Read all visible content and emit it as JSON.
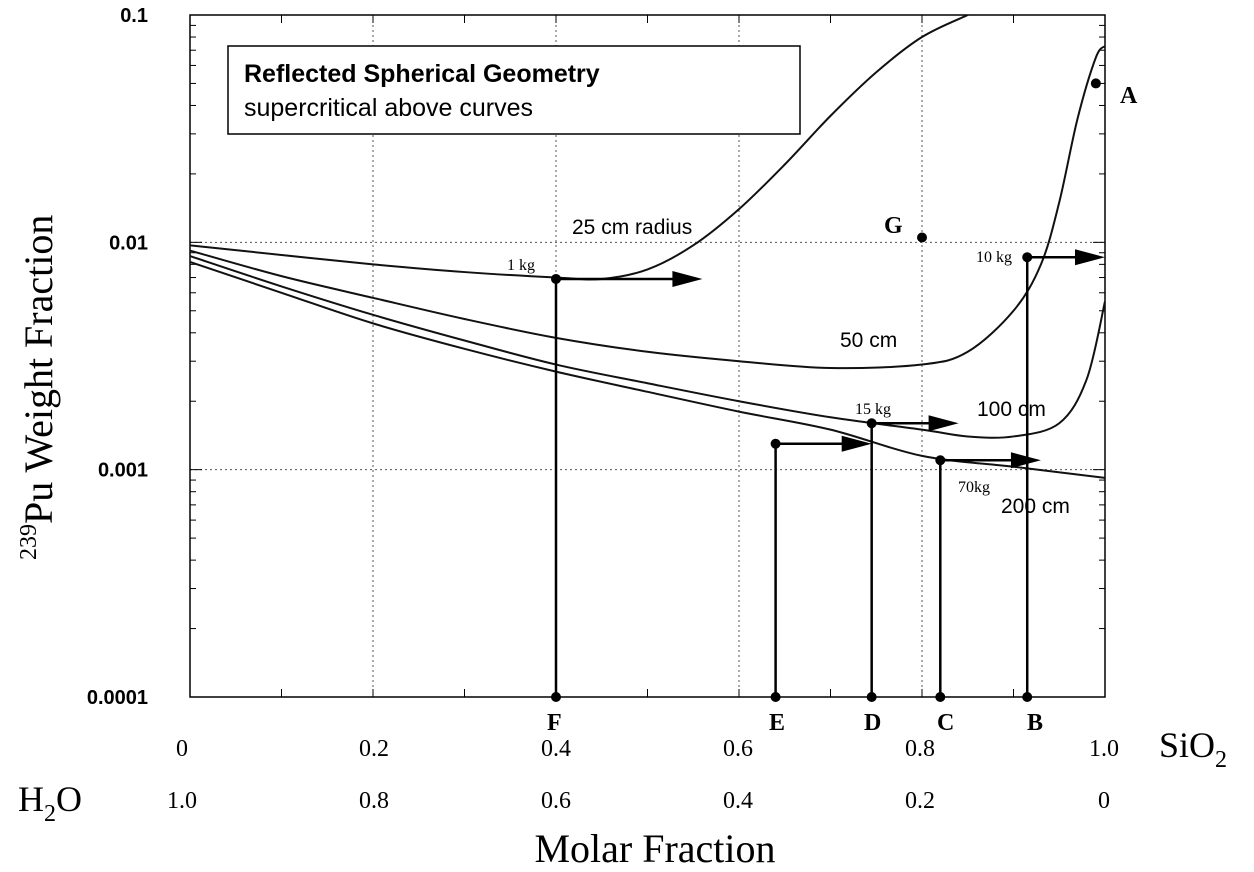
{
  "chart_data": {
    "type": "line",
    "title": "Reflected Spherical Geometry",
    "subtitle": "supercritical above curves",
    "ylabel_sup": "239",
    "ylabel_rest": "Pu Weight Fraction",
    "xlabel": "Molar Fraction",
    "x_axis_top": {
      "label_main": "SiO",
      "label_sub": "2",
      "ticks": [
        "0",
        "0.2",
        "0.4",
        "0.6",
        "0.8",
        "1.0"
      ]
    },
    "x_axis_bottom": {
      "label_main": "H",
      "label_sub": "2",
      "label_tail": "O",
      "ticks": [
        "1.0",
        "0.8",
        "0.6",
        "0.4",
        "0.2",
        "0"
      ]
    },
    "y_ticks": [
      "0.0001",
      "0.001",
      "0.01",
      "0.1"
    ],
    "y_scale": "log",
    "xlim": [
      0,
      1.0
    ],
    "ylim": [
      0.0001,
      0.1
    ],
    "grid": true,
    "series": [
      {
        "name": "25 cm radius",
        "x": [
          0,
          0.1,
          0.2,
          0.3,
          0.4,
          0.45,
          0.5,
          0.55,
          0.6,
          0.65,
          0.7,
          0.75,
          0.8,
          0.85
        ],
        "y": [
          0.0097,
          0.0088,
          0.008,
          0.0074,
          0.007,
          0.0069,
          0.0076,
          0.0097,
          0.014,
          0.022,
          0.036,
          0.056,
          0.08,
          0.1
        ]
      },
      {
        "name": "50 cm",
        "x": [
          0,
          0.1,
          0.2,
          0.3,
          0.4,
          0.5,
          0.6,
          0.7,
          0.8,
          0.85,
          0.9,
          0.93,
          0.95,
          0.97,
          0.99,
          1.0
        ],
        "y": [
          0.0092,
          0.0071,
          0.0057,
          0.0046,
          0.0038,
          0.0033,
          0.003,
          0.0028,
          0.0029,
          0.0033,
          0.005,
          0.008,
          0.015,
          0.035,
          0.065,
          0.073
        ]
      },
      {
        "name": "100 cm",
        "x": [
          0,
          0.1,
          0.2,
          0.3,
          0.4,
          0.5,
          0.6,
          0.7,
          0.8,
          0.85,
          0.9,
          0.95,
          0.98,
          1.0
        ],
        "y": [
          0.0087,
          0.0064,
          0.0048,
          0.0037,
          0.0029,
          0.0024,
          0.002,
          0.0017,
          0.0015,
          0.0014,
          0.0014,
          0.0016,
          0.0025,
          0.0055
        ]
      },
      {
        "name": "200 cm",
        "x": [
          0,
          0.1,
          0.2,
          0.3,
          0.4,
          0.5,
          0.6,
          0.7,
          0.8,
          0.9,
          1.0
        ],
        "y": [
          0.0082,
          0.006,
          0.0044,
          0.0034,
          0.0027,
          0.0022,
          0.0018,
          0.0015,
          0.00115,
          0.00103,
          0.00092
        ]
      }
    ],
    "annotations": [
      {
        "text": "1 kg",
        "x": 0.4,
        "y": 0.0069
      },
      {
        "text": "10 kg",
        "x": 0.915,
        "y": 0.0086
      },
      {
        "text": "15 kg",
        "x": 0.745,
        "y": 0.0016
      },
      {
        "text": "70kg",
        "x": 0.82,
        "y": 0.0011
      }
    ],
    "points": [
      {
        "label": "A",
        "x": 0.99,
        "y": 0.05
      },
      {
        "label": "B",
        "x": 0.915,
        "y": 0.0001
      },
      {
        "label": "C",
        "x": 0.82,
        "y": 0.0001
      },
      {
        "label": "D",
        "x": 0.745,
        "y": 0.0001
      },
      {
        "label": "E",
        "x": 0.64,
        "y": 0.0001
      },
      {
        "label": "F",
        "x": 0.4,
        "y": 0.0001
      },
      {
        "label": "G",
        "x": 0.8,
        "y": 0.0105
      }
    ],
    "markers": [
      {
        "name": "1 kg",
        "x": 0.4,
        "y": 0.0069
      },
      {
        "name": "10 kg",
        "x": 0.915,
        "y": 0.0086
      },
      {
        "name": "15 kg",
        "x": 0.745,
        "y": 0.0016
      },
      {
        "name": "70kg",
        "x": 0.82,
        "y": 0.0011
      },
      {
        "name": "E",
        "x": 0.64,
        "y": 0.0013
      }
    ],
    "arrows": [
      {
        "from_x": 0.4,
        "to_x": 0.56,
        "y": 0.0069
      },
      {
        "from_x": 0.915,
        "to_x": 1.0,
        "y": 0.0086
      },
      {
        "from_x": 0.745,
        "to_x": 0.84,
        "y": 0.0016
      },
      {
        "from_x": 0.82,
        "to_x": 0.93,
        "y": 0.0011
      },
      {
        "from_x": 0.64,
        "to_x": 0.745,
        "y": 0.0013
      }
    ]
  }
}
